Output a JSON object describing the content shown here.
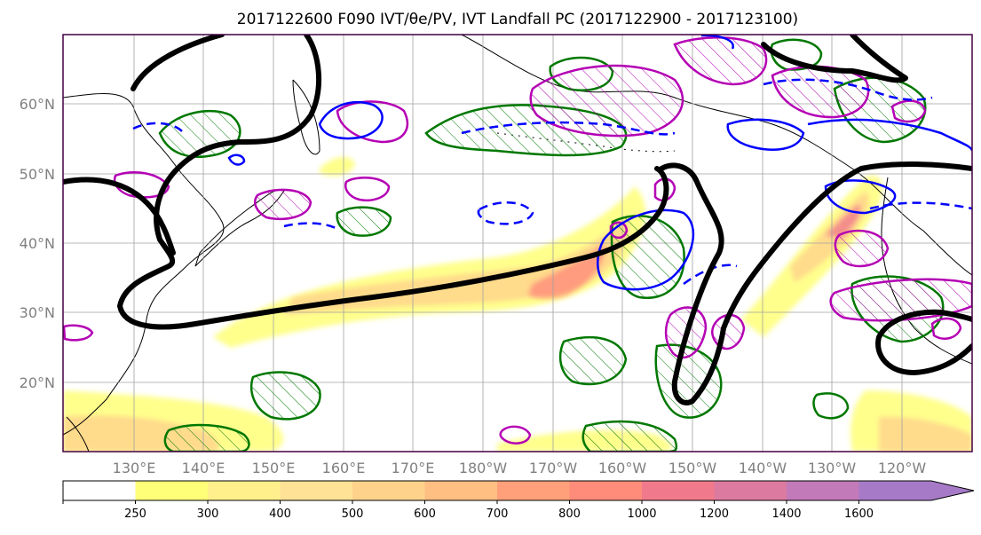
{
  "title": "2017122600 F090 IVT/θe/PV, IVT Landfall PC (2017122900 - 2017123100)",
  "map": {
    "lon_range": [
      120,
      250
    ],
    "lat_range": [
      10,
      70
    ],
    "lat_ticks": [
      {
        "value": 60,
        "label": "60°N"
      },
      {
        "value": 50,
        "label": "50°N"
      },
      {
        "value": 40,
        "label": "40°N"
      },
      {
        "value": 30,
        "label": "30°N"
      },
      {
        "value": 20,
        "label": "20°N"
      }
    ],
    "lon_ticks": [
      {
        "value": 130,
        "label": "130°E"
      },
      {
        "value": 140,
        "label": "140°E"
      },
      {
        "value": 150,
        "label": "150°E"
      },
      {
        "value": 160,
        "label": "160°E"
      },
      {
        "value": 170,
        "label": "170°E"
      },
      {
        "value": 180,
        "label": "180°W"
      },
      {
        "value": 190,
        "label": "170°W"
      },
      {
        "value": 200,
        "label": "160°W"
      },
      {
        "value": 210,
        "label": "150°W"
      },
      {
        "value": 220,
        "label": "140°W"
      },
      {
        "value": 230,
        "label": "130°W"
      },
      {
        "value": 240,
        "label": "120°W"
      }
    ],
    "grid": true,
    "frame_color": "#440044"
  },
  "colorbar": {
    "levels": [
      "250",
      "300",
      "400",
      "500",
      "600",
      "700",
      "800",
      "1000",
      "1200",
      "1400",
      "1600"
    ],
    "colors": [
      "#ffffff",
      "#ffff78",
      "#fff08c",
      "#ffe296",
      "#ffd28c",
      "#ffbe82",
      "#ffa07a",
      "#ff8c7a",
      "#f07a8c",
      "#dc7aa0",
      "#c27ab8",
      "#a77ac8"
    ],
    "extend": "max"
  },
  "legend_colors": {
    "ivt_fill_low": "#ffff78",
    "ivt_fill_mid": "#ffd28c",
    "ivt_fill_high": "#f07a8c",
    "landfall_pc": "#000000",
    "theta_e": "#0000ff",
    "pv_green": "#007800",
    "pv_magenta": "#b400b4"
  }
}
